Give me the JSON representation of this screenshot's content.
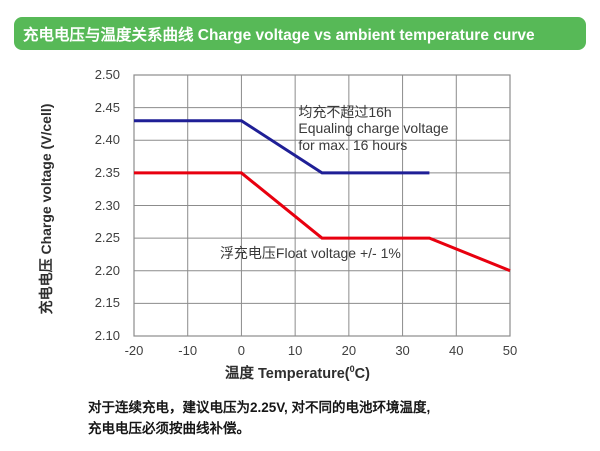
{
  "header": {
    "title": "充电电压与温度关系曲线 Charge voltage vs ambient temperature curve",
    "accent": "#57b957"
  },
  "footer": {
    "line1": "对于连续充电，建议电压为2.25V, 对不同的电池环境温度,",
    "line2": "充电电压必须按曲线补偿。"
  },
  "chart_data": {
    "type": "line",
    "title": "充电电压与温度关系曲线 Charge voltage vs ambient temperature curve",
    "xlabel": "温度 Temperature(°C)",
    "xlabel_parts": {
      "pre": "温度 Temperature(",
      "sup": "0",
      "post": "C)"
    },
    "ylabel": "充电电压 Charge voltage (V/cell)",
    "xlim": [
      -20,
      50
    ],
    "ylim": [
      2.1,
      2.5
    ],
    "grid": true,
    "legend": "none (in-plot annotations)",
    "xticks": [
      {
        "v": -20,
        "label": "-20"
      },
      {
        "v": -10,
        "label": "-10"
      },
      {
        "v": 0,
        "label": "0"
      },
      {
        "v": 10,
        "label": "10"
      },
      {
        "v": 20,
        "label": "20"
      },
      {
        "v": 30,
        "label": "30"
      },
      {
        "v": 40,
        "label": "40"
      },
      {
        "v": 50,
        "label": "50"
      }
    ],
    "yticks": [
      {
        "v": 2.1,
        "label": "2.10"
      },
      {
        "v": 2.15,
        "label": "2.15"
      },
      {
        "v": 2.2,
        "label": "2.20"
      },
      {
        "v": 2.25,
        "label": "2.25"
      },
      {
        "v": 2.3,
        "label": "2.30"
      },
      {
        "v": 2.35,
        "label": "2.35"
      },
      {
        "v": 2.4,
        "label": "2.40"
      },
      {
        "v": 2.45,
        "label": "2.45"
      },
      {
        "v": 2.5,
        "label": "2.50"
      }
    ],
    "series": [
      {
        "name": "均充不超过16h Equaling charge voltage for max. 16 hours",
        "color": "#1f1f96",
        "points": [
          [
            -20,
            2.43
          ],
          [
            0,
            2.43
          ],
          [
            15,
            2.35
          ],
          [
            35,
            2.35
          ]
        ]
      },
      {
        "name": "浮充电压 Float voltage +/- 1%",
        "color": "#e8000f",
        "points": [
          [
            -20,
            2.35
          ],
          [
            0,
            2.35
          ],
          [
            15,
            2.25
          ],
          [
            35,
            2.25
          ],
          [
            50,
            2.2
          ]
        ]
      }
    ],
    "annotations": [
      {
        "x": 10.6,
        "y": 2.456,
        "lines": [
          "均充不超过16h",
          "Equaling charge voltage",
          "for max. 16 hours"
        ]
      },
      {
        "x": -4.0,
        "y": 2.24,
        "lines": [
          "浮充电压Float voltage +/- 1%"
        ]
      }
    ]
  }
}
